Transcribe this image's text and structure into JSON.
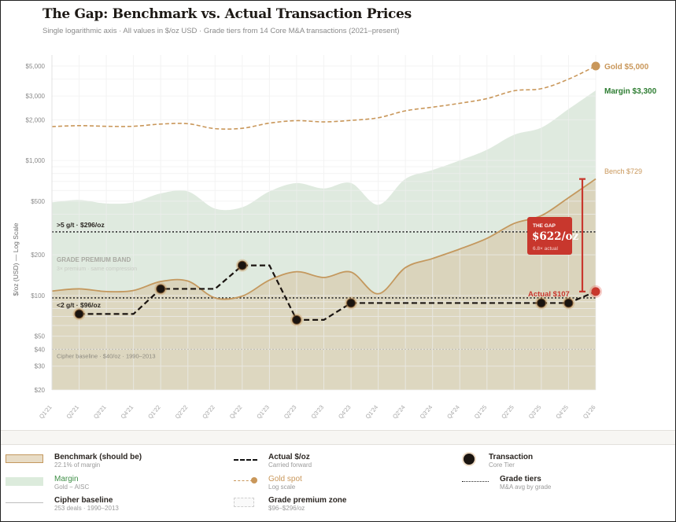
{
  "header": {
    "title": "The Gap: Benchmark vs. Actual Transaction Prices",
    "subtitle": "Single logarithmic axis · All values in $/oz USD · Grade tiers from 14 Core M&A transactions (2021–present)"
  },
  "colors": {
    "gold": "#c9975a",
    "margin_fill": "#d9e6d9",
    "benchmark_fill": "#d8ccb0",
    "benchmark_line": "#c4985e",
    "actual": "#1a1410",
    "gap_red": "#c8372d",
    "margin_label": "#2e7d32",
    "baseline_fill": "#e6e2d3"
  },
  "chart_data": {
    "type": "line",
    "title": "The Gap: Benchmark vs. Actual Transaction Prices",
    "ylabel": "$/oz (USD) — Log Scale",
    "yscale": "log",
    "ylim": [
      20,
      5500
    ],
    "yticks": [
      20,
      30,
      40,
      50,
      100,
      200,
      500,
      1000,
      2000,
      3000,
      5000
    ],
    "ytick_labels": [
      "$20",
      "$30",
      "$40",
      "$50",
      "$100",
      "$200",
      "$500",
      "$1,000",
      "$2,000",
      "$3,000",
      "$5,000"
    ],
    "categories": [
      "Q1'21",
      "Q2'21",
      "Q3'21",
      "Q4'21",
      "Q1'22",
      "Q2'22",
      "Q3'22",
      "Q4'22",
      "Q1'23",
      "Q2'23",
      "Q3'23",
      "Q4'23",
      "Q1'24",
      "Q2'24",
      "Q3'24",
      "Q4'24",
      "Q1'25",
      "Q2'25",
      "Q3'25",
      "Q4'25",
      "Q1'26"
    ],
    "series": [
      {
        "name": "Gold spot",
        "style": "dashed",
        "values": [
          1780,
          1810,
          1790,
          1790,
          1860,
          1870,
          1720,
          1730,
          1890,
          1970,
          1930,
          1980,
          2070,
          2330,
          2480,
          2650,
          2870,
          3280,
          3400,
          4000,
          5000
        ]
      },
      {
        "name": "Margin",
        "style": "area",
        "values": [
          490,
          510,
          480,
          490,
          570,
          590,
          440,
          450,
          590,
          680,
          620,
          680,
          470,
          730,
          850,
          1000,
          1200,
          1550,
          1750,
          2400,
          3300
        ]
      },
      {
        "name": "Benchmark (should be)",
        "style": "area-line",
        "values": [
          108,
          112,
          107,
          109,
          127,
          128,
          96,
          99,
          130,
          150,
          136,
          149,
          103,
          161,
          188,
          221,
          265,
          342,
          390,
          530,
          729
        ]
      },
      {
        "name": "Actual $/oz",
        "style": "dashed-step",
        "values": [
          null,
          73,
          73,
          73,
          112,
          112,
          112,
          167,
          167,
          66,
          66,
          88,
          88,
          88,
          88,
          88,
          88,
          88,
          88,
          88,
          107
        ]
      }
    ],
    "transactions": [
      {
        "quarter": "Q2'21",
        "value": 73
      },
      {
        "quarter": "Q1'22",
        "value": 112
      },
      {
        "quarter": "Q4'22",
        "value": 167
      },
      {
        "quarter": "Q2'23",
        "value": 66
      },
      {
        "quarter": "Q4'23",
        "value": 88
      },
      {
        "quarter": "Q3'25",
        "value": 88
      },
      {
        "quarter": "Q4'25",
        "value": 88
      }
    ],
    "reference_lines": [
      {
        "label": ">5 g/t · $296/oz",
        "value": 296
      },
      {
        "label": "<2 g/t · $96/oz",
        "value": 96
      },
      {
        "label": "Cipher baseline · $40/oz · 1990–2013",
        "value": 40
      }
    ],
    "band": {
      "label": "GRADE PREMIUM BAND",
      "sublabel": "3× premium · same compression",
      "range": [
        96,
        296
      ]
    },
    "end_labels": {
      "gold": "Gold $5,000",
      "margin": "Margin $3,300",
      "bench": "Bench $729",
      "actual": "Actual $107"
    },
    "gap_callout": {
      "title": "THE GAP",
      "value": "$622/oz",
      "note": "6.8× actual",
      "from": 107,
      "to": 729
    }
  },
  "legend": [
    {
      "label": "Benchmark (should be)",
      "sub": "22.1% of margin"
    },
    {
      "label": "Actual $/oz",
      "sub": "Carried forward"
    },
    {
      "label": "Transaction",
      "sub": "Core Tier"
    },
    {
      "label": "Margin",
      "sub": "Gold − AISC"
    },
    {
      "label": "Gold spot",
      "sub": "Log scale"
    },
    {
      "label": "Grade tiers",
      "sub": "M&A avg by grade"
    },
    {
      "label": "Cipher baseline",
      "sub": "253 deals · 1990–2013"
    },
    {
      "label": "Grade premium zone",
      "sub": "$96–$296/oz"
    }
  ]
}
